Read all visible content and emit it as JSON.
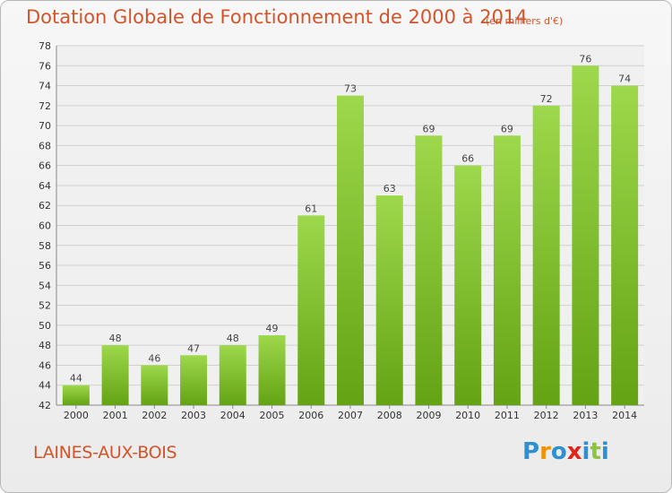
{
  "header": {
    "title": "Dotation Globale de Fonctionnement de 2000 à 2014",
    "subtitle": "(en milliers d'€)"
  },
  "footer": {
    "place": "LAINES-AUX-BOIS",
    "logo_letters": [
      {
        "char": "P",
        "color": "#2f8fd0"
      },
      {
        "char": "r",
        "color": "#f39200"
      },
      {
        "char": "o",
        "color": "#2f8fd0"
      },
      {
        "char": "x",
        "color": "#e2231a"
      },
      {
        "char": "i",
        "color": "#2f8fd0"
      },
      {
        "char": "t",
        "color": "#8cc63f"
      },
      {
        "char": "i",
        "color": "#2f8fd0"
      }
    ]
  },
  "chart_data": {
    "type": "bar",
    "categories": [
      "2000",
      "2001",
      "2002",
      "2003",
      "2004",
      "2005",
      "2006",
      "2007",
      "2008",
      "2009",
      "2010",
      "2011",
      "2012",
      "2013",
      "2014"
    ],
    "values": [
      44,
      48,
      46,
      47,
      48,
      49,
      61,
      73,
      63,
      69,
      66,
      69,
      72,
      76,
      74
    ],
    "ylim": [
      42,
      78
    ],
    "yticks": [
      42,
      44,
      46,
      48,
      50,
      52,
      54,
      56,
      58,
      60,
      62,
      64,
      66,
      68,
      70,
      72,
      74,
      76,
      78
    ],
    "grid": true,
    "data_labels": true,
    "bar_color_top": "#9ed84c",
    "bar_color_bottom": "#63a314",
    "grid_color": "#d0d0d0"
  }
}
